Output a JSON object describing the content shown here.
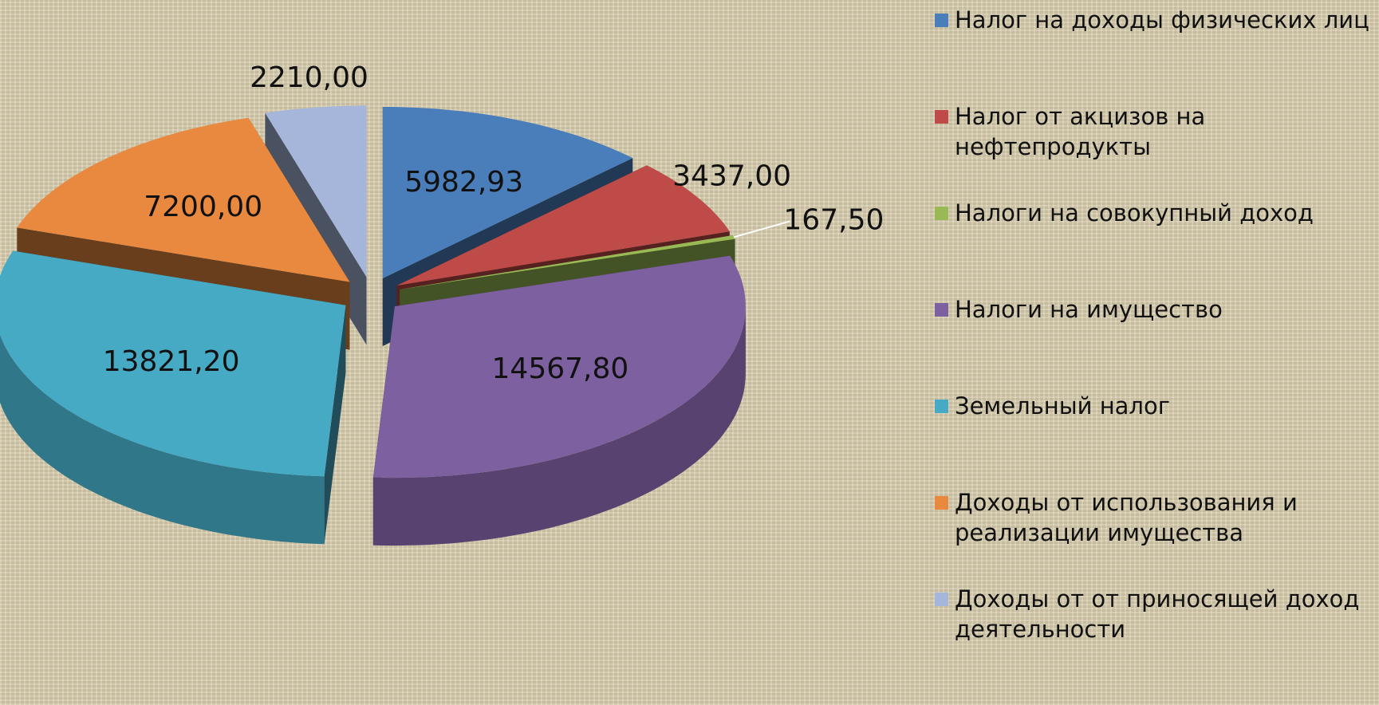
{
  "chart_data": {
    "type": "pie3d",
    "categories": [
      "Налог на доходы физических лиц",
      "Налог от акцизов на нефтепродукты",
      "Налоги на совокупный доход",
      "Налоги на имущество",
      "Земельный налог",
      "Доходы от использования и реализации имущества",
      "Доходы от от приносящей доход деятельности"
    ],
    "values": [
      5982.93,
      3437.0,
      167.5,
      14567.8,
      13821.2,
      7200.0,
      2210.0
    ],
    "value_labels": [
      "5982,93",
      "3437,00",
      "167,50",
      "14567,80",
      "13821,20",
      "7200,00",
      "2210,00"
    ],
    "colors": [
      "#4a7ebb",
      "#be4b48",
      "#98b954",
      "#7d60a0",
      "#46aac5",
      "#e8893f",
      "#a5b6da"
    ],
    "legend": "right"
  }
}
